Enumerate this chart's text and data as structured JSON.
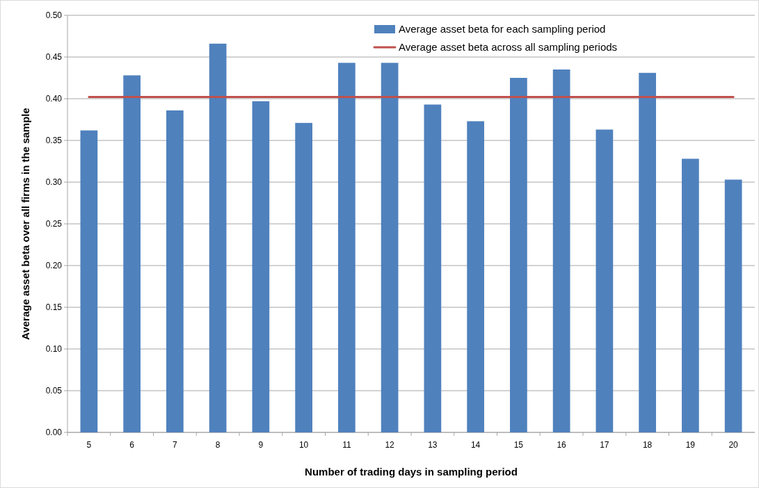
{
  "chart_data": {
    "type": "bar",
    "xlabel": "Number of trading days in sampling period",
    "ylabel": "Average asset beta over all firms in the sample",
    "categories": [
      "5",
      "6",
      "7",
      "8",
      "9",
      "10",
      "11",
      "12",
      "13",
      "14",
      "15",
      "16",
      "17",
      "18",
      "19",
      "20"
    ],
    "series": [
      {
        "name": "Average asset beta for each sampling period",
        "color": "#4f81bd",
        "values": [
          0.362,
          0.428,
          0.386,
          0.466,
          0.397,
          0.371,
          0.443,
          0.443,
          0.393,
          0.373,
          0.425,
          0.435,
          0.363,
          0.431,
          0.328,
          0.303
        ]
      },
      {
        "name": "Average asset beta across all sampling periods",
        "type": "line",
        "color": "#c0504d",
        "values": [
          0.402,
          0.402,
          0.402,
          0.402,
          0.402,
          0.402,
          0.402,
          0.402,
          0.402,
          0.402,
          0.402,
          0.402,
          0.402,
          0.402,
          0.402,
          0.402
        ]
      }
    ],
    "ylim": [
      0,
      0.5
    ],
    "yticks": [
      {
        "value": 0,
        "label": "0.00"
      },
      {
        "value": 0.05,
        "label": "0.05"
      },
      {
        "value": 0.1,
        "label": "0.10"
      },
      {
        "value": 0.15,
        "label": "0.15"
      },
      {
        "value": 0.2,
        "label": "0.20"
      },
      {
        "value": 0.25,
        "label": "0.25"
      },
      {
        "value": 0.3,
        "label": "0.30"
      },
      {
        "value": 0.35,
        "label": "0.35"
      },
      {
        "value": 0.4,
        "label": "0.40"
      },
      {
        "value": 0.45,
        "label": "0.45"
      },
      {
        "value": 0.5,
        "label": "0.50"
      }
    ],
    "grid": "y",
    "legend": "top right",
    "marker": "none"
  }
}
